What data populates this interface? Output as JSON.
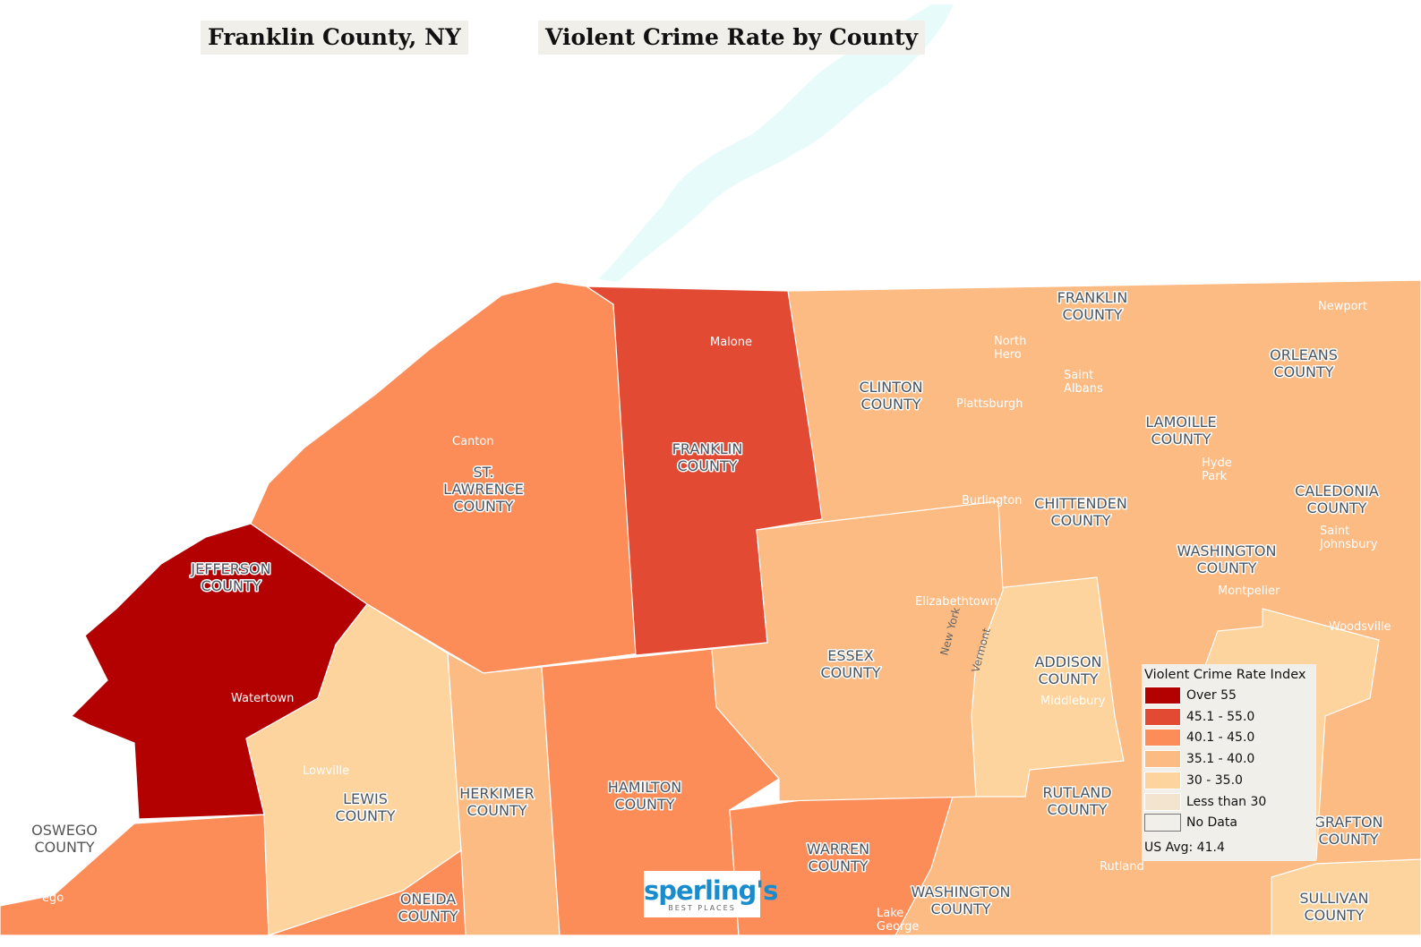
{
  "titles": {
    "location": "Franklin County, NY",
    "map_title": "Violent Crime Rate by County"
  },
  "colors": {
    "over_55": "#b30000",
    "45_55": "#e34a33",
    "40_45": "#fc8d59",
    "35_40": "#fdbb84",
    "30_35": "#fdd49e",
    "under_30": "#f3e4cf",
    "no_data": "#f0efea",
    "water": "#e8fbfb"
  },
  "legend": {
    "title": "Violent Crime Rate Index",
    "items": [
      {
        "label": "Over 55",
        "color": "#b30000"
      },
      {
        "label": "45.1 - 55.0",
        "color": "#e34a33"
      },
      {
        "label": "40.1 - 45.0",
        "color": "#fc8d59"
      },
      {
        "label": "35.1 - 40.0",
        "color": "#fdbb84"
      },
      {
        "label": "30 - 35.0",
        "color": "#fdd49e"
      },
      {
        "label": "Less than 30",
        "color": "#f3e4cf"
      },
      {
        "label": "No Data",
        "color": "#f0efea"
      }
    ],
    "us_avg": "US Avg: 41.4"
  },
  "county_labels": [
    [
      "FRANKLIN",
      "COUNTY"
    ],
    [
      "ST.",
      "LAWRENCE",
      "COUNTY"
    ],
    [
      "JEFFERSON",
      "COUNTY"
    ],
    [
      "LEWIS",
      "COUNTY"
    ],
    [
      "HERKIMER",
      "COUNTY"
    ],
    [
      "HAMILTON",
      "COUNTY"
    ],
    [
      "WARREN",
      "COUNTY"
    ],
    [
      "ESSEX",
      "COUNTY"
    ],
    [
      "CLINTON",
      "COUNTY"
    ],
    [
      "OSWEGO",
      "COUNTY"
    ],
    [
      "ONEIDA",
      "COUNTY"
    ],
    [
      "WASHINGTON",
      "COUNTY"
    ],
    [
      "ADDISON",
      "COUNTY"
    ],
    [
      "RUTLAND",
      "COUNTY"
    ],
    [
      "CHITTENDEN",
      "COUNTY"
    ],
    [
      "WASHINGTON",
      "COUNTY"
    ],
    [
      "LAMOILLE",
      "COUNTY"
    ],
    [
      "FRANKLIN",
      "COUNTY"
    ],
    [
      "ORLEANS",
      "COUNTY"
    ],
    [
      "CALEDONIA",
      "COUNTY"
    ],
    [
      "GRAFTON",
      "COUNTY"
    ],
    [
      "SULLIVAN",
      "COUNTY"
    ]
  ],
  "city_labels": [
    [
      "Malone"
    ],
    [
      "Canton"
    ],
    [
      "Watertown"
    ],
    [
      "Lowville"
    ],
    [
      "Plattsburgh"
    ],
    [
      "Burlington"
    ],
    [
      "Elizabethtown"
    ],
    [
      "Middlebury"
    ],
    [
      "Rutland"
    ],
    [
      "Lake",
      "George"
    ],
    [
      "North",
      "Hero"
    ],
    [
      "Saint",
      "Albans"
    ],
    [
      "Hyde",
      "Park"
    ],
    [
      "Montpelier"
    ],
    [
      "Newport"
    ],
    [
      "Saint",
      "Johnsbury"
    ],
    [
      "Woodsville"
    ],
    [
      "ego"
    ]
  ],
  "state_labels": {
    "ny": "New York",
    "vt": "Vermont"
  },
  "logo": {
    "brand": "sperling's",
    "tagline": "BEST PLACES"
  }
}
